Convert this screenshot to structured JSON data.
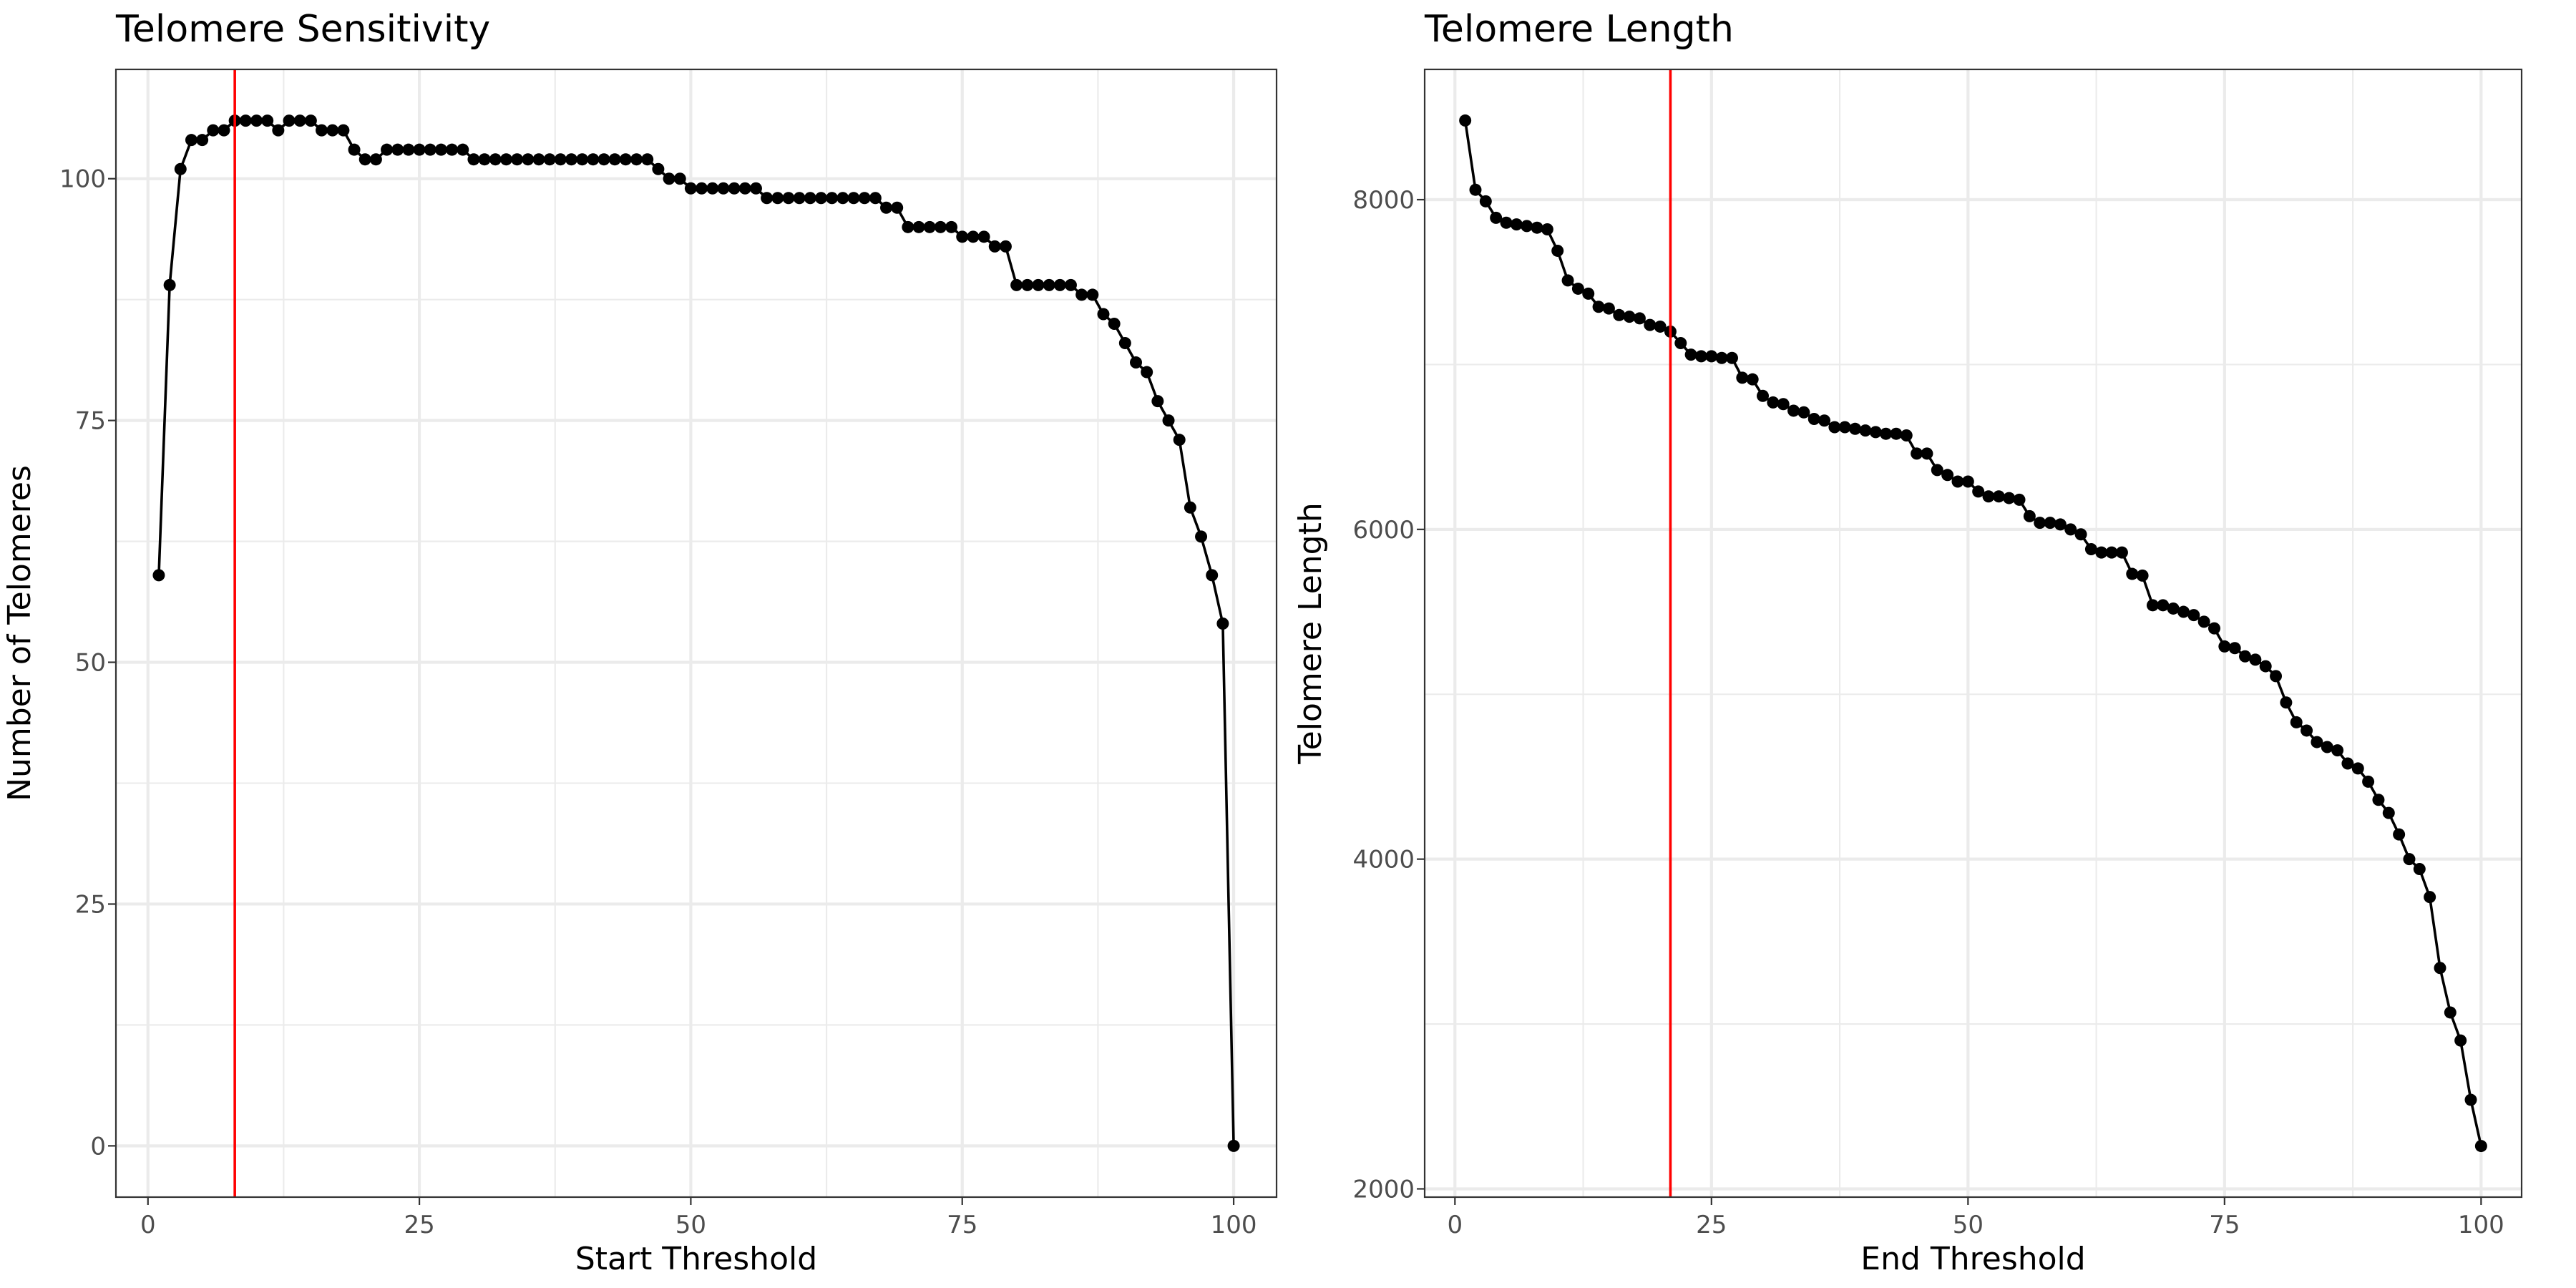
{
  "chart_data": [
    {
      "type": "line",
      "title": "Telomere Sensitivity",
      "xlabel": "Start Threshold",
      "ylabel": "Number of Telomeres",
      "xlim": [
        -2.95,
        103.95
      ],
      "ylim": [
        -5.3,
        111.3
      ],
      "x_ticks": [
        0,
        25,
        50,
        75,
        100
      ],
      "x_tick_labels": [
        "0",
        "25",
        "50",
        "75",
        "100"
      ],
      "y_ticks": [
        0,
        25,
        50,
        75,
        100
      ],
      "y_tick_labels": [
        "0",
        "25",
        "50",
        "75",
        "100"
      ],
      "grid": true,
      "vline": {
        "x": 8,
        "color": "#ff0000"
      },
      "series": [
        {
          "x": [
            1,
            2,
            3,
            4,
            5,
            6,
            7,
            8,
            9,
            10,
            11,
            12,
            13,
            14,
            15,
            16,
            17,
            18,
            19,
            20,
            21,
            22,
            23,
            24,
            25,
            26,
            27,
            28,
            29,
            30,
            31,
            32,
            33,
            34,
            35,
            36,
            37,
            38,
            39,
            40,
            41,
            42,
            43,
            44,
            45,
            46,
            47,
            48,
            49,
            50,
            51,
            52,
            53,
            54,
            55,
            56,
            57,
            58,
            59,
            60,
            61,
            62,
            63,
            64,
            65,
            66,
            67,
            68,
            69,
            70,
            71,
            72,
            73,
            74,
            75,
            76,
            77,
            78,
            79,
            80,
            81,
            82,
            83,
            84,
            85,
            86,
            87,
            88,
            89,
            90,
            91,
            92,
            93,
            94,
            95,
            96,
            97,
            98,
            99,
            100
          ],
          "y": [
            59,
            89,
            101,
            104,
            104,
            105,
            105,
            106,
            106,
            106,
            106,
            105,
            106,
            106,
            106,
            105,
            105,
            105,
            103,
            102,
            102,
            103,
            103,
            103,
            103,
            103,
            103,
            103,
            103,
            102,
            102,
            102,
            102,
            102,
            102,
            102,
            102,
            102,
            102,
            102,
            102,
            102,
            102,
            102,
            102,
            102,
            101,
            100,
            100,
            99,
            99,
            99,
            99,
            99,
            99,
            99,
            98,
            98,
            98,
            98,
            98,
            98,
            98,
            98,
            98,
            98,
            98,
            97,
            97,
            95,
            95,
            95,
            95,
            95,
            94,
            94,
            94,
            93,
            93,
            89,
            89,
            89,
            89,
            89,
            89,
            88,
            88,
            86,
            85,
            83,
            81,
            80,
            77,
            75,
            73,
            66,
            63,
            59,
            54,
            0
          ],
          "color": "#000000"
        }
      ]
    },
    {
      "type": "line",
      "title": "Telomere Length",
      "xlabel": "End Threshold",
      "ylabel": "Telomere Length",
      "xlim": [
        -2.95,
        103.95
      ],
      "ylim": [
        1950,
        8790
      ],
      "x_ticks": [
        0,
        25,
        50,
        75,
        100
      ],
      "x_tick_labels": [
        "0",
        "25",
        "50",
        "75",
        "100"
      ],
      "y_ticks": [
        2000,
        4000,
        6000,
        8000
      ],
      "y_tick_labels": [
        "2000",
        "4000",
        "6000",
        "8000"
      ],
      "grid": true,
      "vline": {
        "x": 21,
        "color": "#ff0000"
      },
      "series": [
        {
          "x": [
            1,
            2,
            3,
            4,
            5,
            6,
            7,
            8,
            9,
            10,
            11,
            12,
            13,
            14,
            15,
            16,
            17,
            18,
            19,
            20,
            21,
            22,
            23,
            24,
            25,
            26,
            27,
            28,
            29,
            30,
            31,
            32,
            33,
            34,
            35,
            36,
            37,
            38,
            39,
            40,
            41,
            42,
            43,
            44,
            45,
            46,
            47,
            48,
            49,
            50,
            51,
            52,
            53,
            54,
            55,
            56,
            57,
            58,
            59,
            60,
            61,
            62,
            63,
            64,
            65,
            66,
            67,
            68,
            69,
            70,
            71,
            72,
            73,
            74,
            75,
            76,
            77,
            78,
            79,
            80,
            81,
            82,
            83,
            84,
            85,
            86,
            87,
            88,
            89,
            90,
            91,
            92,
            93,
            94,
            95,
            96,
            97,
            98,
            99,
            100
          ],
          "y": [
            8480,
            8060,
            7990,
            7890,
            7860,
            7850,
            7840,
            7830,
            7820,
            7690,
            7510,
            7460,
            7430,
            7350,
            7340,
            7300,
            7290,
            7280,
            7240,
            7230,
            7200,
            7130,
            7060,
            7050,
            7050,
            7040,
            7040,
            6920,
            6910,
            6810,
            6770,
            6760,
            6720,
            6710,
            6670,
            6660,
            6620,
            6620,
            6610,
            6600,
            6590,
            6580,
            6580,
            6570,
            6460,
            6460,
            6360,
            6330,
            6290,
            6290,
            6230,
            6200,
            6200,
            6190,
            6180,
            6080,
            6040,
            6040,
            6030,
            6000,
            5970,
            5880,
            5860,
            5860,
            5860,
            5730,
            5720,
            5540,
            5540,
            5520,
            5500,
            5480,
            5440,
            5400,
            5290,
            5280,
            5230,
            5210,
            5170,
            5110,
            4950,
            4830,
            4780,
            4710,
            4680,
            4660,
            4580,
            4550,
            4470,
            4360,
            4280,
            4150,
            4000,
            3940,
            3770,
            3340,
            3070,
            2900,
            2540,
            2260
          ],
          "color": "#000000"
        }
      ]
    }
  ]
}
